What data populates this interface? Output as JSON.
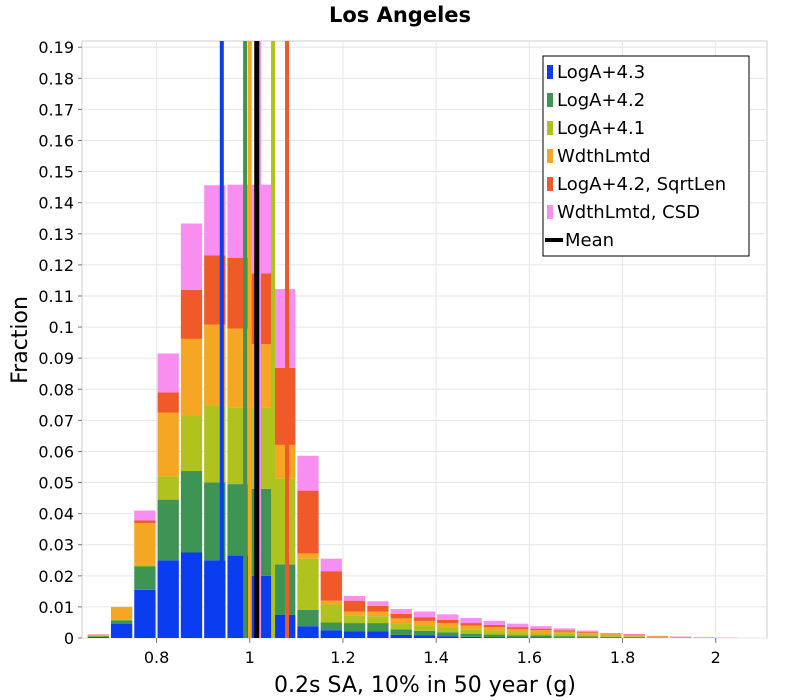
{
  "chart_data": {
    "type": "bar",
    "stacked": true,
    "title": "Los Angeles",
    "xlabel": "0.2s SA, 10% in 50 year (g)",
    "ylabel": "Fraction",
    "xlim": [
      0.64,
      2.11
    ],
    "ylim": [
      0,
      0.192
    ],
    "x_ticks": [
      "0.8",
      "1",
      "1.2",
      "1.4",
      "1.6",
      "1.8",
      "2"
    ],
    "y_ticks": [
      "0",
      "0.01",
      "0.02",
      "0.03",
      "0.04",
      "0.05",
      "0.06",
      "0.07",
      "0.08",
      "0.09",
      "0.1",
      "0.11",
      "0.12",
      "0.13",
      "0.14",
      "0.15",
      "0.16",
      "0.17",
      "0.18",
      "0.19"
    ],
    "bin_width": 0.05,
    "bins": [
      0.675,
      0.725,
      0.775,
      0.825,
      0.875,
      0.925,
      0.975,
      1.025,
      1.075,
      1.125,
      1.175,
      1.225,
      1.275,
      1.325,
      1.375,
      1.425,
      1.475,
      1.525,
      1.575,
      1.625,
      1.675,
      1.725,
      1.775,
      1.825,
      1.875,
      1.925,
      1.975,
      2.025
    ],
    "series": [
      {
        "name": "LogA+4.3",
        "color": "#0a3cf0",
        "values": [
          0.0003,
          0.0045,
          0.0155,
          0.025,
          0.0275,
          0.025,
          0.0265,
          0.02,
          0.0075,
          0.0038,
          0.0025,
          0.0022,
          0.0022,
          0.001,
          0.0008,
          0.0006,
          0.0004,
          0.0003,
          0.0002,
          0.0002,
          0.0001,
          0.0001,
          0.0001,
          0.0001,
          0,
          0,
          0,
          0
        ]
      },
      {
        "name": "LogA+4.2",
        "color": "#3e9452",
        "values": [
          0.0002,
          0.0012,
          0.0075,
          0.0195,
          0.0262,
          0.025,
          0.023,
          0.028,
          0.0162,
          0.0052,
          0.0025,
          0.0026,
          0.0026,
          0.0018,
          0.0015,
          0.0012,
          0.001,
          0.0008,
          0.0007,
          0.0006,
          0.0005,
          0.0004,
          0.0003,
          0.0002,
          0.0001,
          0.0001,
          0,
          0
        ]
      },
      {
        "name": "LogA+4.1",
        "color": "#b0c21e",
        "values": [
          0.0002,
          0.0003,
          0.0005,
          0.0075,
          0.018,
          0.0248,
          0.0245,
          0.026,
          0.0277,
          0.0165,
          0.0058,
          0.0025,
          0.0022,
          0.002,
          0.0017,
          0.0016,
          0.0014,
          0.0013,
          0.001,
          0.0008,
          0.0007,
          0.0006,
          0.0004,
          0.0003,
          0.0002,
          0.0001,
          0.0001,
          0
        ]
      },
      {
        "name": "WdthLmtd",
        "color": "#f5a623",
        "values": [
          0.0003,
          0.004,
          0.0135,
          0.0205,
          0.0245,
          0.026,
          0.0255,
          0.0205,
          0.0107,
          0.0017,
          0.0012,
          0.0012,
          0.0015,
          0.0015,
          0.0015,
          0.0014,
          0.0012,
          0.0011,
          0.001,
          0.0009,
          0.0008,
          0.0006,
          0.0004,
          0.0003,
          0.0002,
          0.0001,
          0.0001,
          0
        ]
      },
      {
        "name": "LogA+4.2, SqrtLen",
        "color": "#f05a28",
        "values": [
          0.0001,
          0,
          0.0008,
          0.0065,
          0.0158,
          0.0223,
          0.0228,
          0.0228,
          0.0248,
          0.0202,
          0.0095,
          0.0035,
          0.0018,
          0.0015,
          0.0012,
          0.001,
          0.0008,
          0.0007,
          0.0006,
          0.0005,
          0.0004,
          0.0003,
          0.0002,
          0.0002,
          0.0001,
          0.0001,
          0,
          0
        ]
      },
      {
        "name": "WdthLmtd, CSD",
        "color": "#f78ef0",
        "values": [
          0.0001,
          0,
          0.0032,
          0.0125,
          0.0213,
          0.0225,
          0.0235,
          0.0285,
          0.0253,
          0.0112,
          0.004,
          0.0015,
          0.0015,
          0.0015,
          0.0018,
          0.0018,
          0.0016,
          0.0013,
          0.0011,
          0.0008,
          0.0006,
          0.0004,
          0.0002,
          0.0002,
          0.0001,
          0.0001,
          0.0001,
          0.0001
        ]
      }
    ],
    "mean_lines": [
      {
        "series": "LogA+4.3",
        "x": 0.94,
        "color": "#0a3cf0"
      },
      {
        "series": "LogA+4.2",
        "x": 0.99,
        "color": "#3e9452"
      },
      {
        "series": "WdthLmtd, CSD",
        "x": 1.02,
        "color": "#f78ef0"
      },
      {
        "series": "LogA+4.1",
        "x": 1.05,
        "color": "#b0c21e"
      },
      {
        "series": "LogA+4.2, SqrtLen",
        "x": 1.08,
        "color": "#f05a28"
      },
      {
        "series": "WdthLmtd",
        "x": 1.0,
        "color": "#f5a623"
      },
      {
        "series": "Mean",
        "x": 1.015,
        "color": "#000000"
      }
    ],
    "legend": {
      "position": "top-right",
      "items": [
        {
          "label": "LogA+4.3",
          "color": "#0a3cf0",
          "kind": "bar"
        },
        {
          "label": "LogA+4.2",
          "color": "#3e9452",
          "kind": "bar"
        },
        {
          "label": "LogA+4.1",
          "color": "#b0c21e",
          "kind": "bar"
        },
        {
          "label": "WdthLmtd",
          "color": "#f5a623",
          "kind": "bar"
        },
        {
          "label": "LogA+4.2, SqrtLen",
          "color": "#f05a28",
          "kind": "bar"
        },
        {
          "label": "WdthLmtd, CSD",
          "color": "#f78ef0",
          "kind": "bar"
        },
        {
          "label": "Mean",
          "color": "#000000",
          "kind": "line"
        }
      ]
    },
    "grid": true
  }
}
